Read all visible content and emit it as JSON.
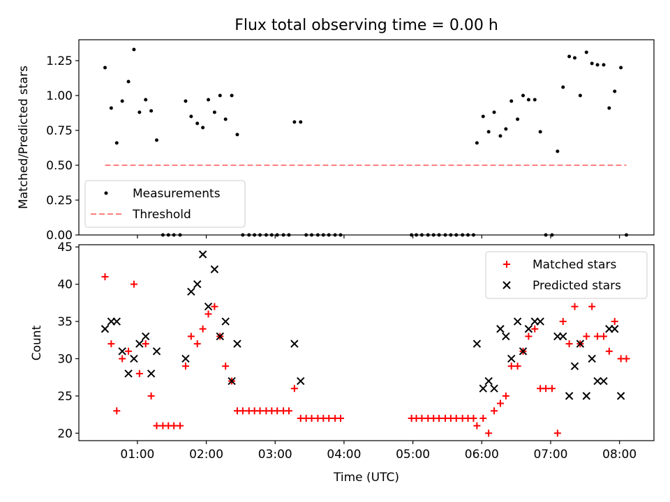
{
  "title": "Flux total observing time = 0.00 h",
  "xlabel": "Time (UTC)",
  "x_ticks": [
    "01:00",
    "02:00",
    "03:00",
    "04:00",
    "05:00",
    "06:00",
    "07:00",
    "08:00"
  ],
  "colors": {
    "measurement": "#000000",
    "threshold": "#ff7f7f",
    "matched": "#ff0000",
    "predicted": "#000000"
  },
  "chart_data": [
    {
      "type": "scatter",
      "ylabel": "Matched/Predicted stars",
      "xlim": [
        0.15,
        8.5
      ],
      "ylim": [
        0.0,
        1.4
      ],
      "y_ticks": [
        "0.00",
        "0.25",
        "0.50",
        "0.75",
        "1.00",
        "1.25"
      ],
      "legend": {
        "position": "bottom-left",
        "entries": [
          "Measurements",
          "Threshold"
        ]
      },
      "threshold": {
        "name": "Threshold",
        "value": 0.5,
        "x_range": [
          0.53,
          8.1
        ]
      },
      "series": [
        {
          "name": "Measurements",
          "points": [
            [
              0.53,
              1.2
            ],
            [
              0.62,
              0.91
            ],
            [
              0.7,
              0.66
            ],
            [
              0.78,
              0.96
            ],
            [
              0.87,
              1.1
            ],
            [
              0.95,
              1.33
            ],
            [
              1.03,
              0.88
            ],
            [
              1.12,
              0.97
            ],
            [
              1.2,
              0.89
            ],
            [
              1.28,
              0.68
            ],
            [
              1.37,
              0.0
            ],
            [
              1.45,
              0.0
            ],
            [
              1.53,
              0.0
            ],
            [
              1.62,
              0.0
            ],
            [
              1.7,
              0.96
            ],
            [
              1.78,
              0.85
            ],
            [
              1.87,
              0.8
            ],
            [
              1.95,
              0.77
            ],
            [
              2.03,
              0.97
            ],
            [
              2.12,
              0.88
            ],
            [
              2.2,
              1.0
            ],
            [
              2.28,
              0.83
            ],
            [
              2.37,
              1.0
            ],
            [
              2.45,
              0.72
            ],
            [
              2.53,
              0.0
            ],
            [
              2.62,
              0.0
            ],
            [
              2.7,
              0.0
            ],
            [
              2.78,
              0.0
            ],
            [
              2.87,
              0.0
            ],
            [
              2.95,
              0.0
            ],
            [
              3.03,
              0.0
            ],
            [
              3.12,
              0.0
            ],
            [
              3.2,
              0.0
            ],
            [
              3.28,
              0.81
            ],
            [
              3.37,
              0.81
            ],
            [
              3.45,
              0.0
            ],
            [
              3.53,
              0.0
            ],
            [
              3.62,
              0.0
            ],
            [
              3.7,
              0.0
            ],
            [
              3.78,
              0.0
            ],
            [
              3.87,
              0.0
            ],
            [
              3.95,
              0.0
            ],
            [
              4.98,
              0.0
            ],
            [
              5.05,
              0.0
            ],
            [
              5.13,
              0.0
            ],
            [
              5.22,
              0.0
            ],
            [
              5.3,
              0.0
            ],
            [
              5.38,
              0.0
            ],
            [
              5.47,
              0.0
            ],
            [
              5.55,
              0.0
            ],
            [
              5.63,
              0.0
            ],
            [
              5.72,
              0.0
            ],
            [
              5.8,
              0.0
            ],
            [
              5.88,
              0.0
            ],
            [
              5.93,
              0.66
            ],
            [
              6.02,
              0.85
            ],
            [
              6.1,
              0.74
            ],
            [
              6.18,
              0.88
            ],
            [
              6.27,
              0.71
            ],
            [
              6.35,
              0.76
            ],
            [
              6.43,
              0.96
            ],
            [
              6.52,
              0.83
            ],
            [
              6.6,
              1.0
            ],
            [
              6.68,
              0.97
            ],
            [
              6.77,
              0.97
            ],
            [
              6.85,
              0.74
            ],
            [
              6.93,
              0.0
            ],
            [
              7.02,
              0.0
            ],
            [
              7.1,
              0.6
            ],
            [
              7.18,
              1.06
            ],
            [
              7.27,
              1.28
            ],
            [
              7.35,
              1.27
            ],
            [
              7.43,
              1.0
            ],
            [
              7.52,
              1.31
            ],
            [
              7.6,
              1.23
            ],
            [
              7.68,
              1.22
            ],
            [
              7.77,
              1.22
            ],
            [
              7.85,
              0.91
            ],
            [
              7.93,
              1.03
            ],
            [
              8.02,
              1.2
            ],
            [
              8.1,
              0.0
            ]
          ]
        }
      ]
    },
    {
      "type": "scatter",
      "ylabel": "Count",
      "xlabel": "Time (UTC)",
      "xlim": [
        0.15,
        8.5
      ],
      "ylim": [
        19,
        45.3
      ],
      "y_ticks": [
        "20",
        "25",
        "30",
        "35",
        "40",
        "45"
      ],
      "legend": {
        "position": "top-right",
        "entries": [
          "Matched stars",
          "Predicted stars"
        ]
      },
      "series": [
        {
          "name": "Matched stars",
          "marker": "+",
          "points": [
            [
              0.53,
              41
            ],
            [
              0.62,
              32
            ],
            [
              0.7,
              23
            ],
            [
              0.78,
              30
            ],
            [
              0.87,
              31
            ],
            [
              0.95,
              40
            ],
            [
              1.03,
              28
            ],
            [
              1.12,
              32
            ],
            [
              1.2,
              25
            ],
            [
              1.28,
              21
            ],
            [
              1.37,
              21
            ],
            [
              1.45,
              21
            ],
            [
              1.53,
              21
            ],
            [
              1.62,
              21
            ],
            [
              1.7,
              29
            ],
            [
              1.78,
              33
            ],
            [
              1.87,
              32
            ],
            [
              1.95,
              34
            ],
            [
              2.03,
              36
            ],
            [
              2.12,
              37
            ],
            [
              2.2,
              33
            ],
            [
              2.28,
              29
            ],
            [
              2.37,
              27
            ],
            [
              2.45,
              23
            ],
            [
              2.53,
              23
            ],
            [
              2.62,
              23
            ],
            [
              2.7,
              23
            ],
            [
              2.78,
              23
            ],
            [
              2.87,
              23
            ],
            [
              2.95,
              23
            ],
            [
              3.03,
              23
            ],
            [
              3.12,
              23
            ],
            [
              3.2,
              23
            ],
            [
              3.28,
              26
            ],
            [
              3.37,
              22
            ],
            [
              3.45,
              22
            ],
            [
              3.53,
              22
            ],
            [
              3.62,
              22
            ],
            [
              3.7,
              22
            ],
            [
              3.78,
              22
            ],
            [
              3.87,
              22
            ],
            [
              3.95,
              22
            ],
            [
              4.98,
              22
            ],
            [
              5.05,
              22
            ],
            [
              5.13,
              22
            ],
            [
              5.22,
              22
            ],
            [
              5.3,
              22
            ],
            [
              5.38,
              22
            ],
            [
              5.47,
              22
            ],
            [
              5.55,
              22
            ],
            [
              5.63,
              22
            ],
            [
              5.72,
              22
            ],
            [
              5.8,
              22
            ],
            [
              5.88,
              22
            ],
            [
              5.93,
              21
            ],
            [
              6.02,
              22
            ],
            [
              6.1,
              20
            ],
            [
              6.18,
              23
            ],
            [
              6.27,
              24
            ],
            [
              6.35,
              25
            ],
            [
              6.43,
              29
            ],
            [
              6.52,
              29
            ],
            [
              6.6,
              31
            ],
            [
              6.68,
              33
            ],
            [
              6.77,
              34
            ],
            [
              6.85,
              26
            ],
            [
              6.93,
              26
            ],
            [
              7.02,
              26
            ],
            [
              7.1,
              20
            ],
            [
              7.18,
              35
            ],
            [
              7.27,
              32
            ],
            [
              7.35,
              37
            ],
            [
              7.43,
              32
            ],
            [
              7.52,
              33
            ],
            [
              7.6,
              37
            ],
            [
              7.68,
              33
            ],
            [
              7.77,
              33
            ],
            [
              7.85,
              31
            ],
            [
              7.93,
              35
            ],
            [
              8.02,
              30
            ],
            [
              8.1,
              30
            ]
          ]
        },
        {
          "name": "Predicted stars",
          "marker": "x",
          "points": [
            [
              0.53,
              34
            ],
            [
              0.62,
              35
            ],
            [
              0.7,
              35
            ],
            [
              0.78,
              31
            ],
            [
              0.87,
              28
            ],
            [
              0.95,
              30
            ],
            [
              1.03,
              32
            ],
            [
              1.12,
              33
            ],
            [
              1.2,
              28
            ],
            [
              1.28,
              31
            ],
            [
              1.7,
              30
            ],
            [
              1.78,
              39
            ],
            [
              1.87,
              40
            ],
            [
              1.95,
              44
            ],
            [
              2.03,
              37
            ],
            [
              2.12,
              42
            ],
            [
              2.2,
              33
            ],
            [
              2.28,
              35
            ],
            [
              2.37,
              27
            ],
            [
              2.45,
              32
            ],
            [
              3.28,
              32
            ],
            [
              3.37,
              27
            ],
            [
              5.93,
              32
            ],
            [
              6.02,
              26
            ],
            [
              6.1,
              27
            ],
            [
              6.18,
              26
            ],
            [
              6.27,
              34
            ],
            [
              6.35,
              33
            ],
            [
              6.43,
              30
            ],
            [
              6.52,
              35
            ],
            [
              6.6,
              31
            ],
            [
              6.68,
              34
            ],
            [
              6.77,
              35
            ],
            [
              6.85,
              35
            ],
            [
              7.1,
              33
            ],
            [
              7.18,
              33
            ],
            [
              7.27,
              25
            ],
            [
              7.35,
              29
            ],
            [
              7.43,
              32
            ],
            [
              7.52,
              25
            ],
            [
              7.6,
              30
            ],
            [
              7.68,
              27
            ],
            [
              7.77,
              27
            ],
            [
              7.85,
              34
            ],
            [
              7.93,
              34
            ],
            [
              8.02,
              25
            ]
          ]
        }
      ]
    }
  ]
}
